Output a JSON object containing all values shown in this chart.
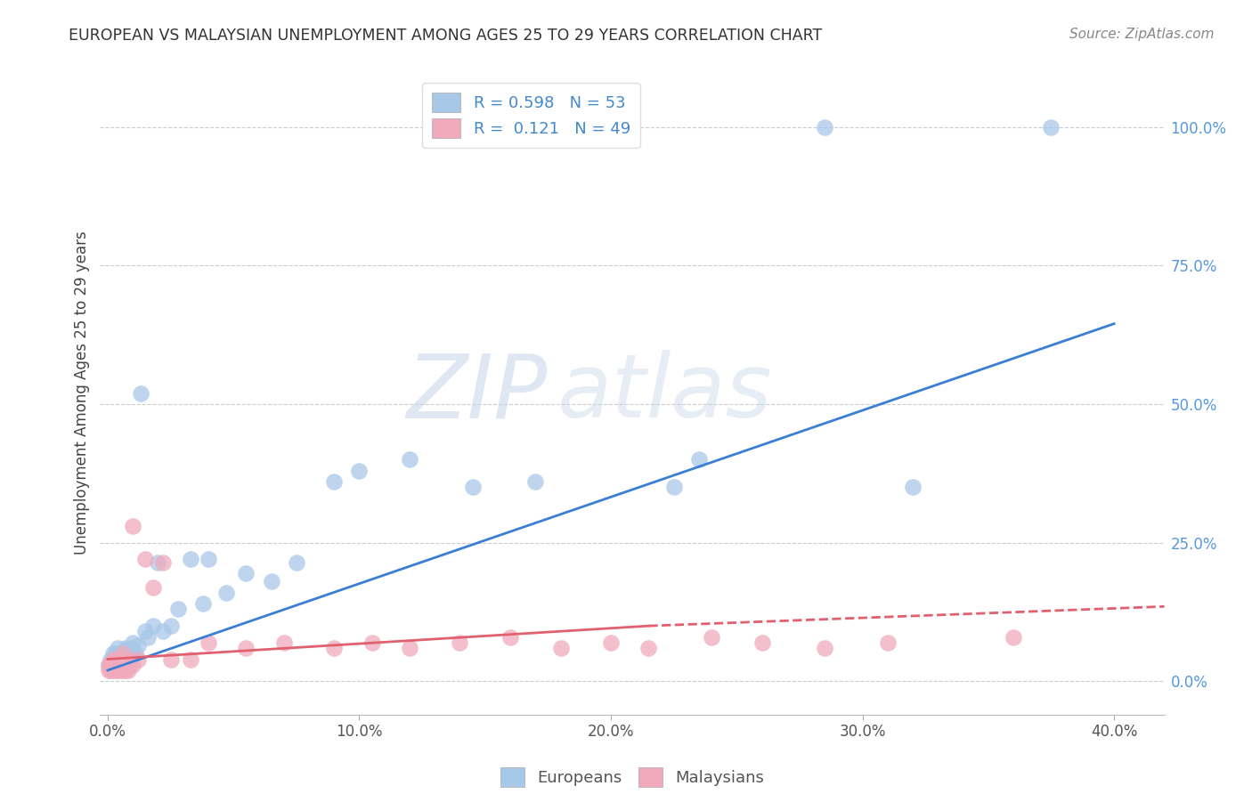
{
  "title": "EUROPEAN VS MALAYSIAN UNEMPLOYMENT AMONG AGES 25 TO 29 YEARS CORRELATION CHART",
  "source": "Source: ZipAtlas.com",
  "ylabel": "Unemployment Among Ages 25 to 29 years",
  "xlim": [
    -0.003,
    0.42
  ],
  "ylim": [
    -0.06,
    1.1
  ],
  "x_tick_vals": [
    0.0,
    0.1,
    0.2,
    0.3,
    0.4
  ],
  "x_tick_labels": [
    "0.0%",
    "10.0%",
    "20.0%",
    "30.0%",
    "40.0%"
  ],
  "y_tick_vals": [
    0.0,
    0.25,
    0.5,
    0.75,
    1.0
  ],
  "y_tick_labels": [
    "0.0%",
    "25.0%",
    "50.0%",
    "75.0%",
    "100.0%"
  ],
  "blue_R": "0.598",
  "blue_N": "53",
  "pink_R": "0.121",
  "pink_N": "49",
  "blue_dot_color": "#a8c8e8",
  "pink_dot_color": "#f0aabb",
  "blue_line_color": "#3a7fd5",
  "pink_line_color": "#e06070",
  "legend_label_blue": "Europeans",
  "legend_label_pink": "Malaysians",
  "watermark": "ZIPatlas",
  "blue_scatter_x": [
    0.0005,
    0.001,
    0.0015,
    0.002,
    0.002,
    0.003,
    0.003,
    0.003,
    0.004,
    0.004,
    0.004,
    0.005,
    0.005,
    0.006,
    0.006,
    0.006,
    0.007,
    0.007,
    0.007,
    0.008,
    0.008,
    0.009,
    0.009,
    0.01,
    0.01,
    0.011,
    0.012,
    0.013,
    0.015,
    0.016,
    0.018,
    0.02,
    0.022,
    0.025,
    0.028,
    0.033,
    0.038,
    0.04,
    0.047,
    0.055,
    0.065,
    0.075,
    0.09,
    0.1,
    0.12,
    0.145,
    0.17,
    0.2,
    0.225,
    0.235,
    0.285,
    0.32,
    0.375
  ],
  "blue_scatter_y": [
    0.03,
    0.04,
    0.03,
    0.05,
    0.04,
    0.04,
    0.05,
    0.03,
    0.04,
    0.06,
    0.03,
    0.05,
    0.04,
    0.03,
    0.05,
    0.04,
    0.04,
    0.06,
    0.05,
    0.04,
    0.05,
    0.04,
    0.06,
    0.05,
    0.07,
    0.05,
    0.065,
    0.52,
    0.09,
    0.08,
    0.1,
    0.215,
    0.09,
    0.1,
    0.13,
    0.22,
    0.14,
    0.22,
    0.16,
    0.195,
    0.18,
    0.215,
    0.36,
    0.38,
    0.4,
    0.35,
    0.36,
    1.0,
    0.35,
    0.4,
    1.0,
    0.35,
    1.0
  ],
  "pink_scatter_x": [
    0.0003,
    0.0005,
    0.001,
    0.001,
    0.0015,
    0.002,
    0.002,
    0.002,
    0.003,
    0.003,
    0.003,
    0.004,
    0.004,
    0.004,
    0.005,
    0.005,
    0.005,
    0.006,
    0.006,
    0.006,
    0.007,
    0.007,
    0.008,
    0.008,
    0.009,
    0.01,
    0.01,
    0.012,
    0.015,
    0.018,
    0.022,
    0.025,
    0.033,
    0.04,
    0.055,
    0.07,
    0.09,
    0.105,
    0.12,
    0.14,
    0.16,
    0.18,
    0.2,
    0.215,
    0.24,
    0.26,
    0.285,
    0.31,
    0.36
  ],
  "pink_scatter_y": [
    0.03,
    0.02,
    0.02,
    0.03,
    0.03,
    0.02,
    0.03,
    0.04,
    0.02,
    0.03,
    0.04,
    0.02,
    0.03,
    0.04,
    0.02,
    0.03,
    0.04,
    0.02,
    0.03,
    0.05,
    0.02,
    0.03,
    0.02,
    0.04,
    0.03,
    0.03,
    0.28,
    0.04,
    0.22,
    0.17,
    0.215,
    0.04,
    0.04,
    0.07,
    0.06,
    0.07,
    0.06,
    0.07,
    0.06,
    0.07,
    0.08,
    0.06,
    0.07,
    0.06,
    0.08,
    0.07,
    0.06,
    0.07,
    0.08
  ],
  "blue_line_x0": 0.0,
  "blue_line_x1": 0.4,
  "blue_line_y0": 0.02,
  "blue_line_y1": 0.645,
  "pink_line_solid_x0": 0.0,
  "pink_line_solid_x1": 0.215,
  "pink_line_solid_y0": 0.04,
  "pink_line_solid_y1": 0.1,
  "pink_line_dash_x0": 0.215,
  "pink_line_dash_x1": 0.42,
  "pink_line_dash_y0": 0.1,
  "pink_line_dash_y1": 0.135
}
